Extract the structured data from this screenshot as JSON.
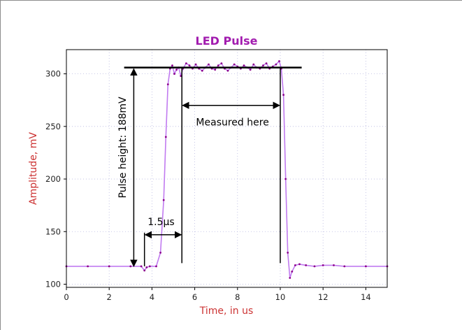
{
  "chart_data": {
    "type": "line",
    "title": "LED Pulse",
    "xlabel": "Time, in us",
    "ylabel": "Amplitude, mV",
    "xlim": [
      0,
      15
    ],
    "ylim": [
      97,
      323
    ],
    "xticks": [
      0,
      2,
      4,
      6,
      8,
      10,
      12,
      14
    ],
    "yticks": [
      100,
      150,
      200,
      250,
      300
    ],
    "grid": true,
    "colors": {
      "title": "#a21caf",
      "axis_label": "#cc3333",
      "line": "#c17bf0",
      "markers": "#8b008b",
      "annotation": "#000000"
    },
    "series": [
      {
        "x": [
          0,
          1,
          2,
          3,
          3.5,
          3.65,
          3.75,
          3.9,
          4.2,
          4.4,
          4.55,
          4.65,
          4.75,
          4.85,
          4.95,
          5.05,
          5.15,
          5.25,
          5.35,
          5.45,
          5.6,
          5.75,
          5.9,
          6.05,
          6.2,
          6.35,
          6.5,
          6.65,
          6.8,
          6.95,
          7.1,
          7.25,
          7.4,
          7.55,
          7.7,
          7.85,
          8.0,
          8.15,
          8.3,
          8.45,
          8.6,
          8.75,
          8.9,
          9.05,
          9.2,
          9.35,
          9.5,
          9.65,
          9.8,
          9.95,
          10.05,
          10.15,
          10.25,
          10.35,
          10.45,
          10.55,
          10.7,
          10.9,
          11.2,
          11.6,
          12,
          12.5,
          13,
          14,
          15
        ],
        "y": [
          117,
          117,
          117,
          117,
          117,
          113,
          116,
          117,
          117,
          130,
          180,
          240,
          290,
          305,
          308,
          300,
          304,
          306,
          298,
          305,
          310,
          308,
          305,
          309,
          305,
          303,
          306,
          309,
          305,
          304,
          308,
          310,
          305,
          303,
          306,
          309,
          307,
          305,
          308,
          306,
          304,
          309,
          306,
          305,
          308,
          310,
          305,
          307,
          309,
          312,
          305,
          280,
          200,
          130,
          106,
          112,
          118,
          119,
          118,
          117,
          118,
          118,
          117,
          117,
          117
        ]
      }
    ],
    "annotations": {
      "pulse_height": "Pulse height: 188mV",
      "rise_time": "1.5μs",
      "measured": "Measured here"
    }
  }
}
